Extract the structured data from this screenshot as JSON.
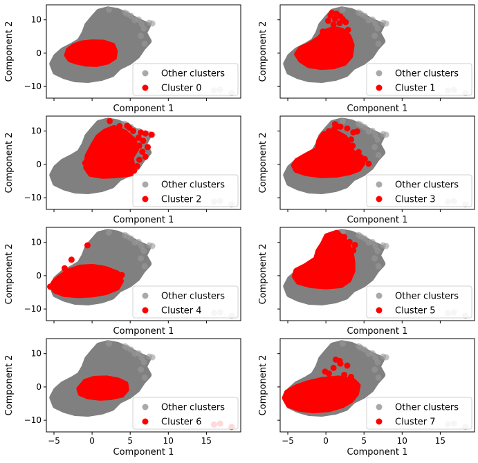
{
  "chart_data": {
    "type": "scatter",
    "layout": {
      "rows": 4,
      "cols": 2,
      "sharex": true,
      "sharey": true
    },
    "xlabel": "Component 1",
    "ylabel": "Component 2",
    "xlim": [
      -6.0,
      19.5
    ],
    "ylim": [
      -13.5,
      14.5
    ],
    "xticks": [
      -5,
      0,
      5,
      10,
      15
    ],
    "yticks": [
      -10,
      0,
      10
    ],
    "legend_loc": "lower right",
    "colors": {
      "other": "#808080",
      "cluster": "#ff0000"
    },
    "other_label": "Other clusters",
    "background_cloud": {
      "polygon": [
        [
          -5.2,
          -3.2
        ],
        [
          -4.8,
          -5.6
        ],
        [
          -3.6,
          -6.9
        ],
        [
          -2.2,
          -7.8
        ],
        [
          -0.5,
          -8.0
        ],
        [
          1.2,
          -7.4
        ],
        [
          2.6,
          -6.3
        ],
        [
          3.5,
          -4.2
        ],
        [
          4.9,
          -2.6
        ],
        [
          5.9,
          -0.8
        ],
        [
          6.6,
          1.6
        ],
        [
          7.4,
          3.6
        ],
        [
          6.8,
          6.1
        ],
        [
          7.3,
          8.3
        ],
        [
          6.0,
          9.6
        ],
        [
          4.9,
          11.0
        ],
        [
          3.3,
          12.6
        ],
        [
          2.1,
          13.1
        ],
        [
          0.9,
          12.4
        ],
        [
          0.2,
          10.6
        ],
        [
          -0.6,
          8.4
        ],
        [
          -1.0,
          5.9
        ],
        [
          -1.6,
          3.6
        ],
        [
          -2.6,
          2.2
        ],
        [
          -3.8,
          0.8
        ],
        [
          -4.7,
          -1.0
        ]
      ],
      "outliers": [
        [
          2.2,
          13.0
        ],
        [
          4.6,
          11.8
        ],
        [
          5.1,
          11.2
        ],
        [
          6.1,
          10.1
        ],
        [
          7.5,
          9.1
        ],
        [
          6.8,
          7.4
        ],
        [
          6.4,
          5.2
        ],
        [
          6.9,
          2.8
        ],
        [
          7.9,
          8.9
        ],
        [
          5.6,
          9.9
        ],
        [
          16.0,
          -11.2
        ],
        [
          16.8,
          -11.0
        ],
        [
          18.3,
          -12.0
        ],
        [
          4.3,
          12.2
        ],
        [
          6.5,
          8.8
        ]
      ]
    },
    "panels": [
      {
        "label": "Cluster 0",
        "polygon": [
          [
            -3.3,
            -0.6
          ],
          [
            -2.9,
            -1.9
          ],
          [
            -2.0,
            -2.6
          ],
          [
            -0.8,
            -3.2
          ],
          [
            0.6,
            -3.3
          ],
          [
            2.0,
            -2.6
          ],
          [
            2.9,
            -1.3
          ],
          [
            3.0,
            0.6
          ],
          [
            2.7,
            2.3
          ],
          [
            1.5,
            3.2
          ],
          [
            0.1,
            3.3
          ],
          [
            -1.3,
            3.0
          ],
          [
            -2.4,
            2.1
          ],
          [
            -3.1,
            0.9
          ]
        ],
        "points": []
      },
      {
        "label": "Cluster 1",
        "polygon": [
          [
            -3.8,
            -0.3
          ],
          [
            -3.3,
            -2.1
          ],
          [
            -2.2,
            -3.7
          ],
          [
            -0.6,
            -4.2
          ],
          [
            1.0,
            -4.0
          ],
          [
            2.4,
            -3.0
          ],
          [
            3.2,
            -0.9
          ],
          [
            3.4,
            2.4
          ],
          [
            3.0,
            5.0
          ],
          [
            2.1,
            6.8
          ],
          [
            1.0,
            7.3
          ],
          [
            -0.1,
            6.4
          ],
          [
            -0.9,
            4.4
          ],
          [
            -2.1,
            2.6
          ],
          [
            -3.3,
            1.4
          ]
        ],
        "points": [
          [
            0.6,
            11.3
          ],
          [
            1.4,
            11.8
          ],
          [
            1.2,
            10.3
          ],
          [
            2.2,
            10.2
          ],
          [
            0.3,
            9.7
          ],
          [
            1.8,
            9.0
          ],
          [
            1.0,
            8.6
          ],
          [
            2.6,
            9.3
          ],
          [
            0.8,
            12.1
          ],
          [
            1.9,
            11.0
          ],
          [
            -0.4,
            6.5
          ],
          [
            2.9,
            7.0
          ]
        ]
      },
      {
        "label": "Cluster 2",
        "polygon": [
          [
            -0.8,
            -0.9
          ],
          [
            -0.2,
            -2.9
          ],
          [
            1.4,
            -3.5
          ],
          [
            3.2,
            -3.3
          ],
          [
            5.1,
            -2.8
          ],
          [
            5.3,
            -0.6
          ],
          [
            5.1,
            2.1
          ],
          [
            5.8,
            4.6
          ],
          [
            5.5,
            7.2
          ],
          [
            4.3,
            9.6
          ],
          [
            2.9,
            11.0
          ],
          [
            1.7,
            9.9
          ],
          [
            0.8,
            8.3
          ],
          [
            0.1,
            5.6
          ],
          [
            -0.6,
            2.6
          ]
        ],
        "points": [
          [
            2.3,
            13.0
          ],
          [
            3.6,
            11.5
          ],
          [
            4.6,
            11.6
          ],
          [
            5.4,
            10.0
          ],
          [
            7.0,
            9.3
          ],
          [
            7.8,
            8.9
          ],
          [
            6.4,
            9.6
          ],
          [
            6.1,
            8.0
          ],
          [
            6.7,
            7.1
          ],
          [
            7.3,
            5.2
          ],
          [
            6.2,
            5.6
          ],
          [
            6.6,
            3.8
          ],
          [
            7.0,
            2.3
          ],
          [
            6.2,
            1.4
          ],
          [
            5.9,
            -0.5
          ],
          [
            5.5,
            -1.9
          ],
          [
            4.4,
            9.3
          ],
          [
            3.1,
            10.2
          ],
          [
            4.9,
            11.0
          ],
          [
            -0.6,
            -0.5
          ],
          [
            -0.9,
            0.4
          ]
        ]
      },
      {
        "label": "Cluster 3",
        "polygon": [
          [
            -4.2,
            -0.3
          ],
          [
            -3.9,
            -1.7
          ],
          [
            -2.6,
            -2.7
          ],
          [
            -0.6,
            -3.3
          ],
          [
            1.5,
            -3.1
          ],
          [
            3.1,
            -2.4
          ],
          [
            4.3,
            -1.4
          ],
          [
            4.8,
            0.3
          ],
          [
            4.6,
            2.2
          ],
          [
            3.5,
            3.6
          ],
          [
            2.9,
            6.1
          ],
          [
            2.5,
            8.1
          ],
          [
            1.4,
            9.5
          ],
          [
            -0.3,
            9.1
          ],
          [
            -0.9,
            7.1
          ],
          [
            -1.1,
            4.5
          ],
          [
            -2.6,
            2.7
          ],
          [
            -3.8,
            1.1
          ]
        ],
        "points": [
          [
            1.2,
            12.1
          ],
          [
            1.9,
            11.3
          ],
          [
            1.1,
            10.6
          ],
          [
            2.8,
            10.8
          ],
          [
            0.4,
            10.0
          ],
          [
            3.6,
            9.6
          ],
          [
            4.1,
            9.9
          ],
          [
            3.3,
            7.5
          ],
          [
            2.0,
            8.6
          ],
          [
            3.5,
            5.6
          ],
          [
            4.3,
            3.7
          ],
          [
            5.1,
            1.6
          ],
          [
            5.6,
            0.2
          ],
          [
            1.5,
            11.4
          ]
        ]
      },
      {
        "label": "Cluster 4",
        "polygon": [
          [
            -5.3,
            -3.2
          ],
          [
            -4.8,
            -4.6
          ],
          [
            -3.6,
            -5.6
          ],
          [
            -1.8,
            -5.9
          ],
          [
            0.0,
            -5.7
          ],
          [
            1.8,
            -5.0
          ],
          [
            3.3,
            -3.6
          ],
          [
            3.8,
            -1.6
          ],
          [
            3.3,
            0.7
          ],
          [
            1.7,
            2.1
          ],
          [
            0.1,
            2.7
          ],
          [
            -1.5,
            2.5
          ],
          [
            -3.1,
            1.3
          ],
          [
            -4.3,
            -0.6
          ],
          [
            -5.0,
            -2.0
          ]
        ],
        "points": [
          [
            -0.6,
            9.1
          ],
          [
            -2.7,
            4.8
          ],
          [
            -3.6,
            2.2
          ],
          [
            3.9,
            0.2
          ],
          [
            -5.5,
            -3.3
          ]
        ]
      },
      {
        "label": "Cluster 5",
        "polygon": [
          [
            -4.1,
            -0.2
          ],
          [
            -3.6,
            -1.9
          ],
          [
            -2.0,
            -2.9
          ],
          [
            0.0,
            -3.3
          ],
          [
            2.0,
            -2.9
          ],
          [
            3.0,
            -1.3
          ],
          [
            3.5,
            1.4
          ],
          [
            3.5,
            4.1
          ],
          [
            3.3,
            6.7
          ],
          [
            2.9,
            9.0
          ],
          [
            2.2,
            11.3
          ],
          [
            1.4,
            12.9
          ],
          [
            0.1,
            11.9
          ],
          [
            -0.4,
            9.5
          ],
          [
            -1.0,
            7.4
          ],
          [
            -1.3,
            5.0
          ],
          [
            -2.7,
            2.9
          ],
          [
            -3.9,
            1.5
          ]
        ],
        "points": [
          [
            1.5,
            12.7
          ],
          [
            2.4,
            11.6
          ],
          [
            3.1,
            10.1
          ],
          [
            3.8,
            9.2
          ],
          [
            3.6,
            7.6
          ],
          [
            0.9,
            12.4
          ]
        ]
      },
      {
        "label": "Cluster 6",
        "polygon": [
          [
            -1.7,
            -0.6
          ],
          [
            -1.5,
            -2.0
          ],
          [
            -0.5,
            -2.9
          ],
          [
            1.0,
            -3.3
          ],
          [
            2.5,
            -3.1
          ],
          [
            3.9,
            -2.4
          ],
          [
            4.5,
            -0.8
          ],
          [
            4.4,
            0.9
          ],
          [
            3.4,
            2.0
          ],
          [
            1.9,
            2.6
          ],
          [
            0.3,
            2.5
          ],
          [
            -0.9,
            1.6
          ]
        ],
        "points": [
          [
            16.0,
            -11.3
          ],
          [
            16.8,
            -11.0
          ],
          [
            18.3,
            -12.0
          ]
        ]
      },
      {
        "label": "Cluster 7",
        "polygon": [
          [
            -5.4,
            -3.3
          ],
          [
            -4.9,
            -5.4
          ],
          [
            -3.5,
            -6.6
          ],
          [
            -1.6,
            -7.1
          ],
          [
            0.4,
            -6.7
          ],
          [
            2.1,
            -5.6
          ],
          [
            3.3,
            -4.0
          ],
          [
            4.0,
            -2.0
          ],
          [
            4.2,
            0.4
          ],
          [
            3.6,
            1.8
          ],
          [
            1.7,
            2.6
          ],
          [
            -0.4,
            2.2
          ],
          [
            -2.3,
            1.2
          ],
          [
            -3.9,
            -0.1
          ],
          [
            -5.1,
            -1.6
          ]
        ],
        "points": [
          [
            1.3,
            8.2
          ],
          [
            1.9,
            7.0
          ],
          [
            2.8,
            6.4
          ],
          [
            1.0,
            5.7
          ],
          [
            -0.1,
            4.6
          ],
          [
            2.4,
            3.6
          ],
          [
            3.3,
            3.0
          ],
          [
            0.4,
            4.0
          ],
          [
            1.8,
            7.8
          ]
        ]
      }
    ]
  }
}
